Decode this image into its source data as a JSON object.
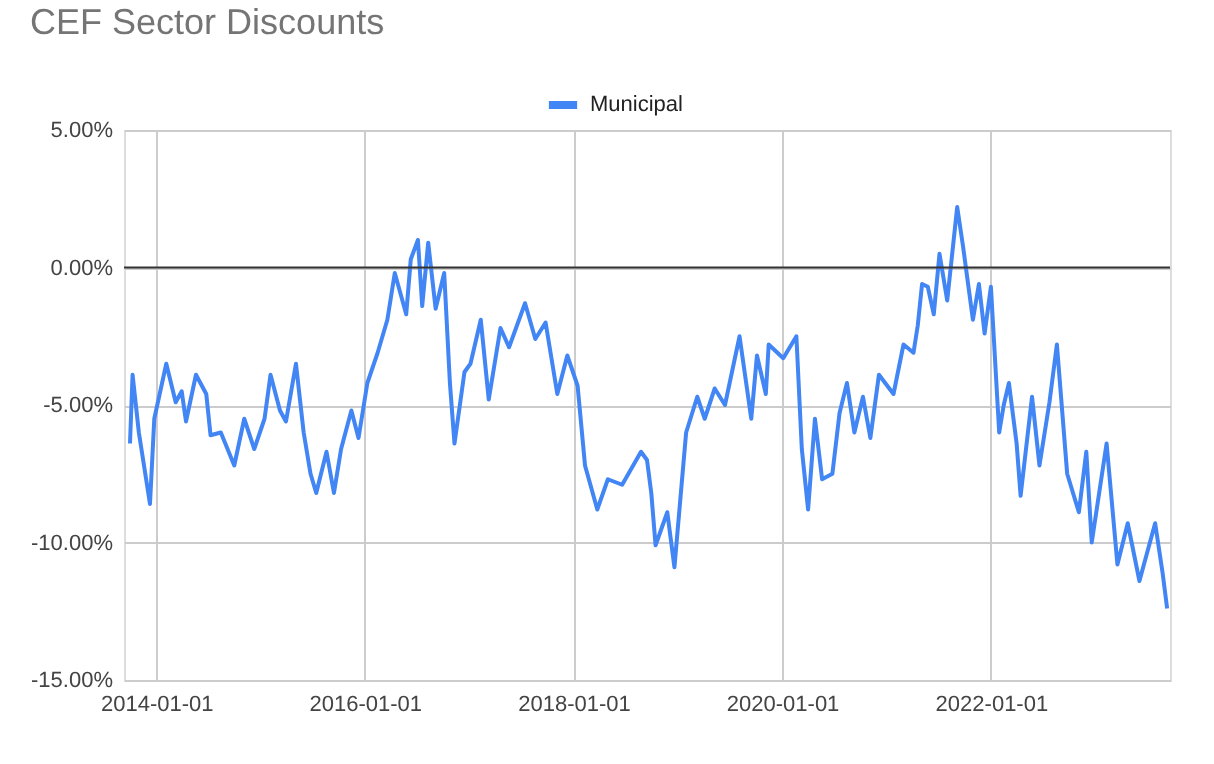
{
  "chart_data": {
    "type": "line",
    "title": "CEF Sector Discounts",
    "x": [
      "2013-10-01",
      "2013-10-10",
      "2013-11-01",
      "2013-12-10",
      "2013-12-25",
      "2014-02-05",
      "2014-03-10",
      "2014-03-31",
      "2014-04-15",
      "2014-05-20",
      "2014-06-25",
      "2014-07-10",
      "2014-08-15",
      "2014-10-01",
      "2014-11-05",
      "2014-12-10",
      "2015-01-15",
      "2015-02-05",
      "2015-03-10",
      "2015-03-31",
      "2015-05-05",
      "2015-06-01",
      "2015-06-25",
      "2015-07-15",
      "2015-08-20",
      "2015-09-15",
      "2015-10-10",
      "2015-11-15",
      "2015-12-10",
      "2016-01-10",
      "2016-02-15",
      "2016-03-20",
      "2016-04-15",
      "2016-05-25",
      "2016-06-10",
      "2016-07-05",
      "2016-07-20",
      "2016-08-10",
      "2016-09-05",
      "2016-10-05",
      "2016-10-25",
      "2016-11-10",
      "2016-12-15",
      "2017-01-05",
      "2017-02-10",
      "2017-03-10",
      "2017-04-20",
      "2017-05-20",
      "2017-07-15",
      "2017-08-20",
      "2017-09-25",
      "2017-11-05",
      "2017-12-10",
      "2018-01-15",
      "2018-02-10",
      "2018-03-25",
      "2018-05-01",
      "2018-06-20",
      "2018-08-25",
      "2018-09-15",
      "2018-09-30",
      "2018-10-15",
      "2018-11-25",
      "2018-12-20",
      "2019-01-30",
      "2019-03-10",
      "2019-04-05",
      "2019-05-10",
      "2019-06-15",
      "2019-08-05",
      "2019-09-15",
      "2019-10-05",
      "2019-11-05",
      "2019-11-15",
      "2020-01-05",
      "2020-02-20",
      "2020-03-10",
      "2020-04-01",
      "2020-04-25",
      "2020-05-20",
      "2020-06-25",
      "2020-07-20",
      "2020-08-15",
      "2020-09-10",
      "2020-10-10",
      "2020-11-05",
      "2020-12-05",
      "2021-01-25",
      "2021-03-01",
      "2021-04-05",
      "2021-04-20",
      "2021-05-05",
      "2021-05-25",
      "2021-06-15",
      "2021-07-05",
      "2021-08-01",
      "2021-09-05",
      "2021-09-25",
      "2021-10-30",
      "2021-11-20",
      "2021-12-10",
      "2022-01-01",
      "2022-01-30",
      "2022-02-15",
      "2022-03-05",
      "2022-04-01",
      "2022-04-15",
      "2022-05-25",
      "2022-06-20",
      "2022-07-25",
      "2022-08-20",
      "2022-09-25",
      "2022-11-05",
      "2022-12-01",
      "2022-12-20",
      "2023-02-10",
      "2023-03-20",
      "2023-04-25",
      "2023-06-05",
      "2023-07-30",
      "2023-08-25",
      "2023-09-10"
    ],
    "series": [
      {
        "name": "Municipal",
        "color": "#4285f4",
        "values": [
          -6.4,
          -3.9,
          -6.0,
          -8.6,
          -5.5,
          -3.5,
          -4.9,
          -4.5,
          -5.6,
          -3.9,
          -4.6,
          -6.1,
          -6.0,
          -7.2,
          -5.5,
          -6.6,
          -5.5,
          -3.9,
          -5.2,
          -5.6,
          -3.5,
          -6.0,
          -7.5,
          -8.2,
          -6.7,
          -8.2,
          -6.6,
          -5.2,
          -6.2,
          -4.2,
          -3.1,
          -1.9,
          -0.2,
          -1.7,
          0.3,
          1.0,
          -1.4,
          0.9,
          -1.5,
          -0.2,
          -4.2,
          -6.4,
          -3.8,
          -3.5,
          -1.9,
          -4.8,
          -2.2,
          -2.9,
          -1.3,
          -2.6,
          -2.0,
          -4.6,
          -3.2,
          -4.3,
          -7.2,
          -8.8,
          -7.7,
          -7.9,
          -6.7,
          -7.0,
          -8.2,
          -10.1,
          -8.9,
          -10.9,
          -6.0,
          -4.7,
          -5.5,
          -4.4,
          -5.0,
          -2.5,
          -5.5,
          -3.2,
          -4.6,
          -2.8,
          -3.3,
          -2.5,
          -6.6,
          -8.8,
          -5.5,
          -7.7,
          -7.5,
          -5.3,
          -4.2,
          -6.0,
          -4.7,
          -6.2,
          -3.9,
          -4.6,
          -2.8,
          -3.1,
          -2.1,
          -0.6,
          -0.7,
          -1.7,
          0.5,
          -1.2,
          2.2,
          0.8,
          -1.9,
          -0.6,
          -2.4,
          -0.7,
          -6.0,
          -5.0,
          -4.2,
          -6.4,
          -8.3,
          -4.7,
          -7.2,
          -4.9,
          -2.8,
          -7.5,
          -8.9,
          -6.7,
          -10.0,
          -6.4,
          -10.8,
          -9.3,
          -11.4,
          -9.3,
          -11.1,
          -12.4
        ]
      }
    ],
    "xlim": [
      "2013-09-10",
      "2023-09-20"
    ],
    "xticks": [
      "2014-01-01",
      "2016-01-01",
      "2018-01-01",
      "2020-01-01",
      "2022-01-01"
    ],
    "ylim": [
      -15,
      5
    ],
    "yticks": [
      {
        "value": -15,
        "label": "-15.00%"
      },
      {
        "value": -10,
        "label": "-10.00%"
      },
      {
        "value": -5,
        "label": "-5.00%"
      },
      {
        "value": 0,
        "label": "0.00%"
      },
      {
        "value": 5,
        "label": "5.00%"
      }
    ],
    "ref_lines": [
      {
        "axis": "y",
        "value": 0,
        "color": "#333333"
      }
    ],
    "grid": true,
    "legend": "top",
    "marker": "none",
    "line_style": "solid"
  }
}
